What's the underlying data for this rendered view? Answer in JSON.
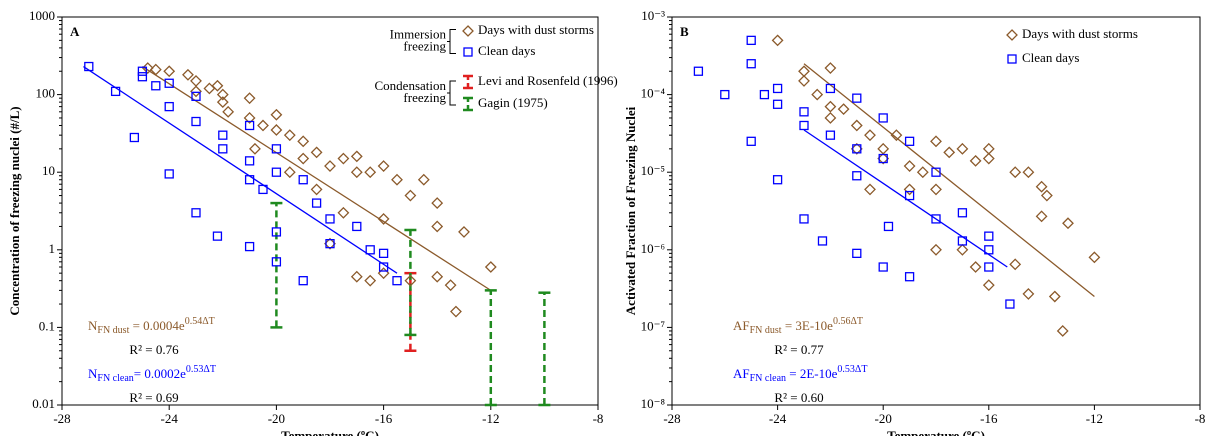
{
  "chart_data": [
    {
      "type": "scatter",
      "panel": "A",
      "xlabel": "Temperature (ºC)",
      "ylabel": "Concentration of freezing nuclei (#/L)",
      "xlim": [
        -28,
        -8
      ],
      "xticks": [
        -28,
        -24,
        -20,
        -16,
        -12,
        -8
      ],
      "ylim": [
        0.01,
        1000
      ],
      "yticks": [
        0.01,
        0.1,
        1,
        10,
        100,
        1000
      ],
      "log_y": true,
      "series": [
        {
          "name": "Days with dust storms",
          "color": "#8b5a2b",
          "marker": "diamond",
          "x": [
            -24.8,
            -24.5,
            -24,
            -23.3,
            -23,
            -23,
            -22.5,
            -22,
            -22,
            -21.8,
            -21,
            -21,
            -20.5,
            -20,
            -20,
            -19.5,
            -19,
            -19,
            -18.5,
            -18,
            -17.5,
            -17,
            -17,
            -16.5,
            -16,
            -16,
            -15.5,
            -15,
            -14.5,
            -14,
            -14,
            -13.5,
            -13.3,
            -13,
            -12,
            -14,
            -15,
            -16,
            -17,
            -18,
            -18.5,
            -19.5,
            -22.2,
            -20.8,
            -17.5,
            -16.5
          ],
          "values": [
            220,
            210,
            200,
            180,
            150,
            110,
            120,
            100,
            80,
            60,
            90,
            50,
            40,
            55,
            35,
            30,
            25,
            15,
            18,
            12,
            15,
            16,
            10,
            10,
            12,
            2.5,
            8,
            5,
            8,
            4,
            2,
            0.35,
            0.16,
            1.7,
            0.6,
            0.45,
            0.4,
            0.5,
            0.45,
            1.2,
            6,
            10,
            130,
            20,
            3,
            0.4
          ]
        },
        {
          "name": "Clean days",
          "color": "#0000ff",
          "marker": "square",
          "x": [
            -27,
            -26,
            -25.3,
            -25,
            -25,
            -24,
            -24,
            -24,
            -23,
            -23,
            -23,
            -22.2,
            -22,
            -22,
            -21,
            -21,
            -21,
            -21,
            -20,
            -20,
            -20,
            -20,
            -19,
            -19,
            -18.5,
            -18,
            -18,
            -17,
            -16.5,
            -16,
            -15.5,
            -16,
            -20.5,
            -24.5
          ],
          "values": [
            230,
            110,
            28,
            200,
            170,
            9.5,
            140,
            70,
            95,
            45,
            3,
            1.5,
            30,
            20,
            1.1,
            40,
            14,
            8,
            20,
            10,
            0.7,
            1.7,
            0.4,
            8,
            4,
            2.5,
            1.2,
            2,
            1,
            0.9,
            0.4,
            0.6,
            6,
            130
          ]
        }
      ],
      "ranges": [
        {
          "name": "Levi and Rosenfeld (1996)",
          "color": "#e02020",
          "x": [
            -15
          ],
          "low": [
            0.05
          ],
          "high": [
            0.5
          ]
        },
        {
          "name": "Gagin (1975)",
          "color": "#1f8a1f",
          "x": [
            -20,
            -15,
            -12,
            -10
          ],
          "low": [
            0.1,
            0.08,
            0.01,
            0.01
          ],
          "high": [
            4,
            1.8,
            0.3,
            0.28
          ]
        }
      ],
      "trendlines": [
        {
          "color": "#8b5a2b",
          "x": [
            -25,
            -12
          ],
          "values": [
            230,
            0.3
          ]
        },
        {
          "color": "#0000ff",
          "x": [
            -27.2,
            -15.5
          ],
          "values": [
            230,
            0.5
          ]
        }
      ],
      "legend_groups": [
        [
          "Immersion",
          "freezing"
        ],
        [
          "Condensation",
          "freezing"
        ]
      ],
      "equations": [
        {
          "color": "#8b5a2b",
          "main": "N",
          "sub": "FN dust",
          "rest": " = 0.0004e",
          "sup": "0.54ΔT",
          "r2": "R² = 0.76"
        },
        {
          "color": "#0000ff",
          "main": "N",
          "sub": "FN clean",
          "rest": "= 0.0002e",
          "sup": "0.53ΔT",
          "r2": "R² = 0.69"
        }
      ]
    },
    {
      "type": "scatter",
      "panel": "B",
      "xlabel": "Temperature (ºC)",
      "ylabel": "Activated Fraction of Freezing Nuclei",
      "xlim": [
        -28,
        -8
      ],
      "xticks": [
        -28,
        -24,
        -20,
        -16,
        -12,
        -8
      ],
      "ylim": [
        1e-08,
        0.001
      ],
      "yticks": [
        {
          "value": 1e-08,
          "label": "10⁻⁸"
        },
        {
          "value": 1e-07,
          "label": "10⁻⁷"
        },
        {
          "value": 1e-06,
          "label": "10⁻⁶"
        },
        {
          "value": 1e-05,
          "label": "10⁻⁵"
        },
        {
          "value": 0.0001,
          "label": "10⁻⁴"
        },
        {
          "value": 0.001,
          "label": "10⁻³"
        }
      ],
      "log_y": true,
      "series": [
        {
          "name": "Days with dust storms",
          "color": "#8b5a2b",
          "marker": "diamond",
          "x": [
            -24,
            -23,
            -23,
            -22.5,
            -22,
            -22,
            -21.5,
            -21,
            -21,
            -20.5,
            -20,
            -20,
            -19.5,
            -19,
            -19,
            -18.5,
            -18,
            -18,
            -17.5,
            -17,
            -17,
            -16.5,
            -16,
            -16,
            -16,
            -15,
            -14.5,
            -14,
            -14,
            -13.8,
            -13.5,
            -13,
            -12,
            -13.2,
            -14.5,
            -15,
            -16.5,
            -18,
            -20.5,
            -22
          ],
          "values": [
            0.0005,
            0.0002,
            0.00015,
            0.0001,
            7e-05,
            5e-05,
            6.5e-05,
            4e-05,
            2e-05,
            3e-05,
            2e-05,
            1.5e-05,
            3e-05,
            1.2e-05,
            6e-06,
            1e-05,
            2.5e-05,
            6e-06,
            1.8e-05,
            2e-05,
            1e-06,
            1.4e-05,
            2e-05,
            1.5e-05,
            3.5e-07,
            1e-05,
            1e-05,
            6.5e-06,
            2.7e-06,
            5e-06,
            2.5e-07,
            2.2e-06,
            8e-07,
            9e-08,
            2.7e-07,
            6.5e-07,
            6e-07,
            1e-06,
            6e-06,
            0.00022
          ]
        },
        {
          "name": "Clean days",
          "color": "#0000ff",
          "marker": "square",
          "x": [
            -27,
            -26,
            -25,
            -25,
            -25,
            -24.5,
            -24,
            -24,
            -24,
            -23,
            -23,
            -23,
            -22.3,
            -22,
            -22,
            -21,
            -21,
            -21,
            -21,
            -20,
            -20,
            -20,
            -19.8,
            -19,
            -19,
            -19,
            -18,
            -18,
            -17,
            -17,
            -16,
            -16,
            -15.2,
            -16
          ],
          "values": [
            0.0002,
            0.0001,
            2.5e-05,
            0.0005,
            0.00025,
            0.0001,
            8e-06,
            0.00012,
            7.5e-05,
            6e-05,
            4e-05,
            2.5e-06,
            1.3e-06,
            3e-05,
            0.00012,
            9e-07,
            9e-05,
            2e-05,
            9e-06,
            5e-05,
            1.5e-05,
            6e-07,
            2e-06,
            4.5e-07,
            2.5e-05,
            5e-06,
            2.5e-06,
            1e-05,
            3e-06,
            1.3e-06,
            1.5e-06,
            6e-07,
            2e-07,
            1e-06
          ]
        }
      ],
      "trendlines": [
        {
          "color": "#8b5a2b",
          "x": [
            -23,
            -12
          ],
          "values": [
            0.00025,
            2.5e-07
          ]
        },
        {
          "color": "#0000ff",
          "x": [
            -23,
            -15.3
          ],
          "values": [
            3.5e-05,
            6e-07
          ]
        }
      ],
      "equations": [
        {
          "color": "#8b5a2b",
          "main": "AF",
          "sub": "FN dust",
          "rest": " = 3E-10e",
          "sup": "0.56ΔT",
          "r2": "R² = 0.77"
        },
        {
          "color": "#0000ff",
          "main": "AF",
          "sub": "FN clean",
          "rest": " = 2E-10e",
          "sup": "0.53ΔT",
          "r2": "R² = 0.60"
        }
      ]
    }
  ]
}
